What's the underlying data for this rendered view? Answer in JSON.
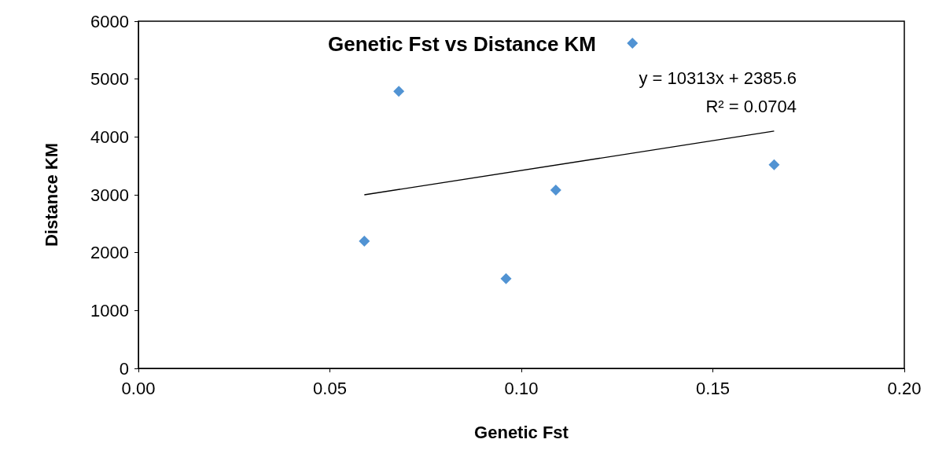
{
  "chart_data": {
    "type": "scatter",
    "title": "Genetic Fst vs Distance KM",
    "xlabel": "Genetic Fst",
    "ylabel": "Distance KM",
    "series": [
      {
        "color": "#2678c8",
        "x": [
          0.059,
          0.068,
          0.096,
          0.109,
          0.129,
          0.166
        ],
        "values": [
          2200,
          4790,
          1550,
          3080,
          5620,
          3520
        ]
      },
      {
        "type": "line",
        "color": "#000000",
        "x": [
          0.059,
          0.166
        ],
        "values": [
          3000,
          4100
        ],
        "marker": "none"
      }
    ],
    "annotations": [
      "y = 10313x + 2385.6",
      "R² = 0.0704"
    ],
    "xlim": [
      0,
      0.2
    ],
    "xticks": [
      {
        "value": 0,
        "label": "0.00"
      },
      {
        "value": 0.05,
        "label": "0.05"
      },
      {
        "value": 0.1,
        "label": "0.10"
      },
      {
        "value": 0.15,
        "label": "0.15"
      },
      {
        "value": 0.2,
        "label": "0.20"
      }
    ],
    "ylim": [
      0,
      6000
    ],
    "yticks": [
      0,
      1000,
      2000,
      3000,
      4000,
      5000,
      6000
    ],
    "grid": false,
    "marker": "diamond"
  }
}
